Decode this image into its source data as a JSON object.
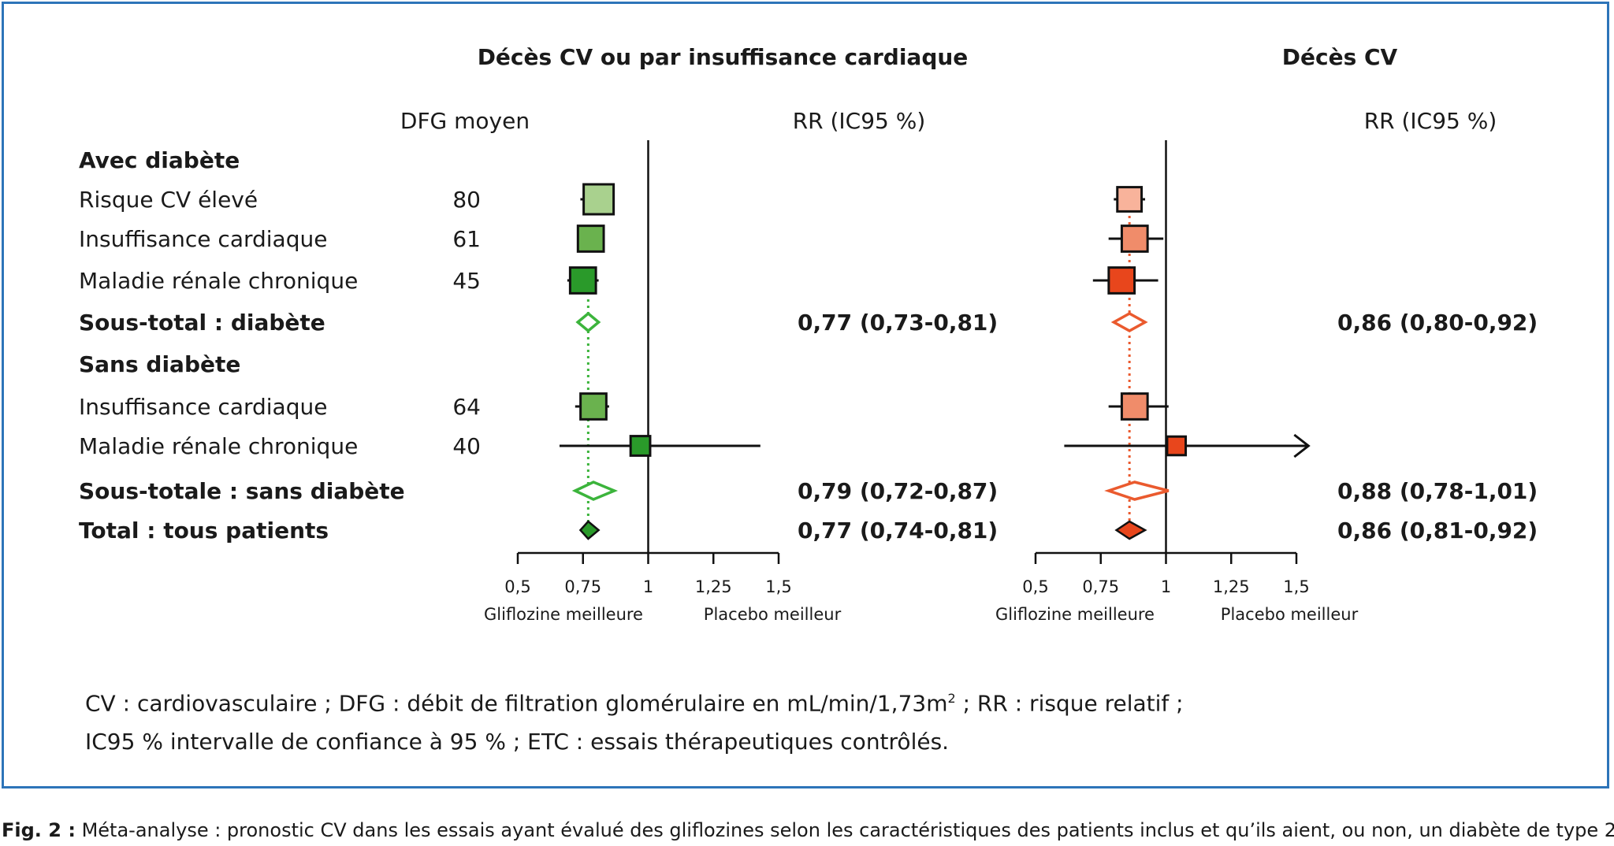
{
  "chart_data": {
    "type": "forest",
    "rows": [
      {
        "label": "Avec diabète",
        "kind": "header",
        "bold": true,
        "dfg": ""
      },
      {
        "label": "Risque CV élevé",
        "kind": "study",
        "bold": false,
        "dfg": "80"
      },
      {
        "label": "Insuffisance cardiaque",
        "kind": "study",
        "bold": false,
        "dfg": "61"
      },
      {
        "label": "Maladie rénale chronique",
        "kind": "study",
        "bold": false,
        "dfg": "45"
      },
      {
        "label": "Sous-total : diabète",
        "kind": "subtotal",
        "bold": true,
        "dfg": ""
      },
      {
        "label": "Sans diabète",
        "kind": "header",
        "bold": true,
        "dfg": ""
      },
      {
        "label": "Insuffisance cardiaque",
        "kind": "study",
        "bold": false,
        "dfg": "64"
      },
      {
        "label": "Maladie rénale chronique",
        "kind": "study",
        "bold": false,
        "dfg": "40"
      },
      {
        "label": "Sous-totale : sans diabète",
        "kind": "subtotal",
        "bold": true,
        "dfg": ""
      },
      {
        "label": "Total : tous patients",
        "kind": "total",
        "bold": true,
        "dfg": ""
      }
    ],
    "dfg_header": "DFG moyen",
    "panels": [
      {
        "title": "Décès CV ou par insuffisance cardiaque",
        "rr_header": "RR (IC95 %)",
        "xlim": [
          0.5,
          1.5
        ],
        "ticks": [
          0.5,
          0.75,
          1,
          1.25,
          1.5
        ],
        "tick_labels": [
          "0,5",
          "0,75",
          "1",
          "1,25",
          "1,5"
        ],
        "left_label": "Gliflozine meilleure",
        "right_label": "Placebo meilleur",
        "pooled_line": 0.77,
        "colors": {
          "light": "#a9d18e",
          "medium": "#6ab24e",
          "dark": "#2a9a2a",
          "diamond_open": "#3cb43c"
        },
        "points": [
          {
            "row": 1,
            "rr": 0.81,
            "lo": 0.74,
            "hi": 0.85,
            "weight": 1.0,
            "shade": "light"
          },
          {
            "row": 2,
            "rr": 0.78,
            "lo": 0.73,
            "hi": 0.83,
            "weight": 0.78,
            "shade": "medium"
          },
          {
            "row": 3,
            "rr": 0.75,
            "lo": 0.69,
            "hi": 0.81,
            "weight": 0.78,
            "shade": "dark"
          },
          {
            "row": 4,
            "rr": 0.77,
            "lo": 0.73,
            "hi": 0.81,
            "shade": "diamond-open"
          },
          {
            "row": 6,
            "rr": 0.79,
            "lo": 0.72,
            "hi": 0.85,
            "weight": 0.78,
            "shade": "medium"
          },
          {
            "row": 7,
            "rr": 0.97,
            "lo": 0.66,
            "hi": 1.43,
            "weight": 0.45,
            "shade": "dark"
          },
          {
            "row": 8,
            "rr": 0.79,
            "lo": 0.72,
            "hi": 0.87,
            "shade": "diamond-open"
          },
          {
            "row": 9,
            "rr": 0.77,
            "lo": 0.74,
            "hi": 0.81,
            "shade": "diamond-filled"
          }
        ],
        "rr_labels": [
          {
            "row": 4,
            "text": "0,77 (0,73-0,81)"
          },
          {
            "row": 8,
            "text": "0,79 (0,72-0,87)"
          },
          {
            "row": 9,
            "text": "0,77 (0,74-0,81)"
          }
        ]
      },
      {
        "title": "Décès CV",
        "rr_header": "RR (IC95 %)",
        "xlim": [
          0.5,
          1.5
        ],
        "ticks": [
          0.5,
          0.75,
          1,
          1.25,
          1.5
        ],
        "tick_labels": [
          "0,5",
          "0,75",
          "1",
          "1,25",
          "1,5"
        ],
        "left_label": "Gliflozine meilleure",
        "right_label": "Placebo meilleur",
        "pooled_line": 0.86,
        "colors": {
          "light": "#f8b39b",
          "medium": "#f08c6a",
          "dark": "#e8461c",
          "diamond_open": "#ea5a2e"
        },
        "points": [
          {
            "row": 1,
            "rr": 0.86,
            "lo": 0.8,
            "hi": 0.92,
            "weight": 0.7,
            "shade": "light"
          },
          {
            "row": 2,
            "rr": 0.88,
            "lo": 0.78,
            "hi": 0.99,
            "weight": 0.78,
            "shade": "medium"
          },
          {
            "row": 3,
            "rr": 0.83,
            "lo": 0.72,
            "hi": 0.97,
            "weight": 0.78,
            "shade": "dark"
          },
          {
            "row": 4,
            "rr": 0.86,
            "lo": 0.8,
            "hi": 0.92,
            "shade": "diamond-open"
          },
          {
            "row": 6,
            "rr": 0.88,
            "lo": 0.78,
            "hi": 1.01,
            "weight": 0.78,
            "shade": "medium"
          },
          {
            "row": 7,
            "rr": 1.04,
            "lo": 0.61,
            "hi": 1.51,
            "weight": 0.4,
            "shade": "dark",
            "arrow_right": true
          },
          {
            "row": 8,
            "rr": 0.88,
            "lo": 0.78,
            "hi": 1.01,
            "shade": "diamond-open"
          },
          {
            "row": 9,
            "rr": 0.86,
            "lo": 0.81,
            "hi": 0.92,
            "shade": "diamond-filled"
          }
        ],
        "rr_labels": [
          {
            "row": 4,
            "text": "0,86 (0,80-0,92)"
          },
          {
            "row": 8,
            "text": "0,88 (0,78-1,01)"
          },
          {
            "row": 9,
            "text": "0,86 (0,81-0,92)"
          }
        ]
      }
    ]
  },
  "legend": {
    "line1": "CV : cardiovasculaire ; DFG : débit de filtration glomérulaire en mL/min/1,73m",
    "line1_sup": "2",
    "line1_end": " ; RR : risque relatif ;",
    "line2": "IC95 % intervalle de confiance à 95 % ; ETC : essais thérapeutiques contrôlés."
  },
  "caption": {
    "label": "Fig. 2 :",
    "text": " Méta-analyse : pronostic CV dans les essais ayant évalué des gliflozines selon les caractéristiques des patients inclus et qu’ils aient, ou non, un diabète de type 2."
  }
}
